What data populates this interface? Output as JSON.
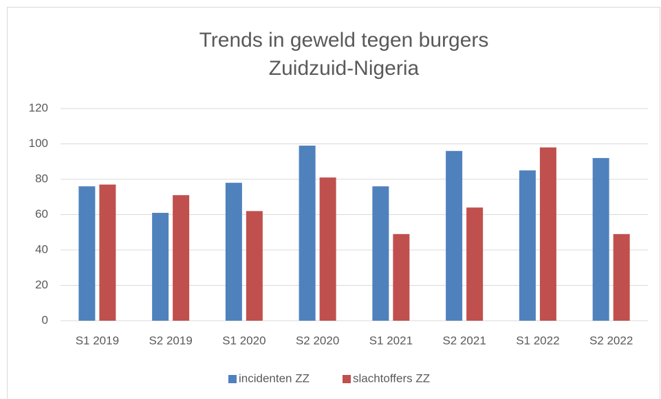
{
  "chart_data": {
    "type": "bar",
    "title": "Trends in geweld tegen burgers",
    "subtitle": "Zuidzuid-Nigeria",
    "categories": [
      "S1 2019",
      "S2 2019",
      "S1 2020",
      "S2 2020",
      "S1 2021",
      "S2 2021",
      "S1 2022",
      "S2 2022"
    ],
    "series": [
      {
        "name": "incidenten ZZ",
        "color": "#4f81bd",
        "values": [
          76,
          61,
          78,
          99,
          76,
          96,
          85,
          92
        ]
      },
      {
        "name": "slachtoffers ZZ",
        "color": "#c0504d",
        "values": [
          77,
          71,
          62,
          81,
          49,
          64,
          98,
          49
        ]
      }
    ],
    "ylim": [
      0,
      120
    ],
    "yticks": [
      0,
      20,
      40,
      60,
      80,
      100,
      120
    ],
    "grid": true,
    "legend": "bottom"
  }
}
